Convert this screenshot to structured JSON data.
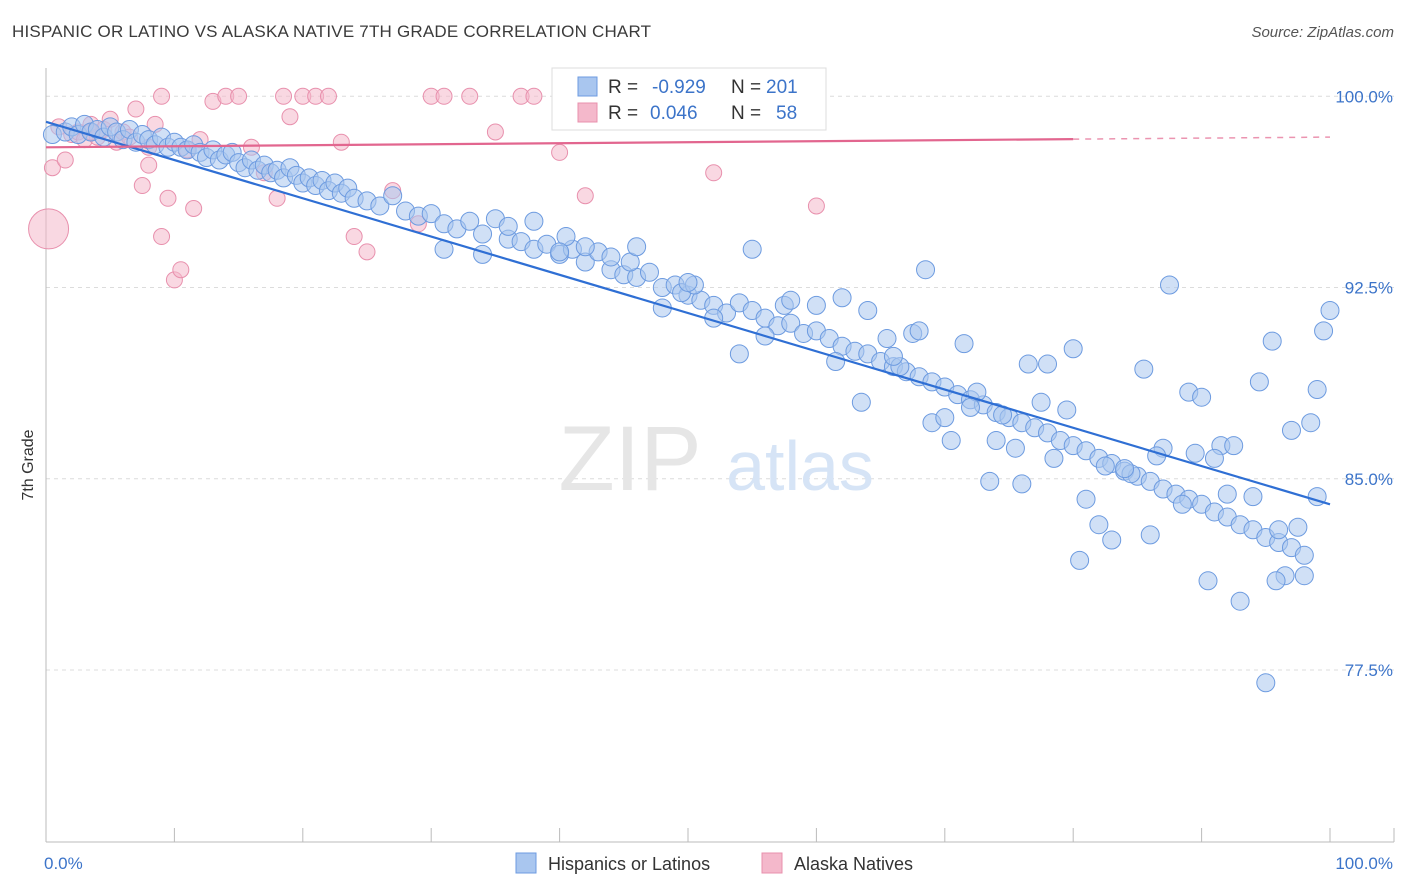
{
  "header": {
    "title": "HISPANIC OR LATINO VS ALASKA NATIVE 7TH GRADE CORRELATION CHART",
    "source": "Source: ZipAtlas.com"
  },
  "watermark": {
    "zip": "ZIP",
    "atlas": "atlas"
  },
  "colors": {
    "blue_fill": "#a9c6ef",
    "blue_stroke": "#6d9be0",
    "blue_line": "#2f6fd4",
    "pink_fill": "#f4b8cb",
    "pink_stroke": "#e890ad",
    "pink_line": "#e2668f",
    "axis_text": "#3c74c9",
    "grid": "#dcdcdc"
  },
  "legend_top": {
    "rows": [
      {
        "r_label": "R =",
        "r_value": "-0.929",
        "n_label": "N =",
        "n_value": "201"
      },
      {
        "r_label": "R =",
        "r_value": "0.046",
        "n_label": "N =",
        "n_value": "58"
      }
    ]
  },
  "chart_data": {
    "type": "scatter",
    "title": "HISPANIC OR LATINO VS ALASKA NATIVE 7TH GRADE CORRELATION CHART",
    "xlabel": "",
    "ylabel": "7th Grade",
    "xlim": [
      0,
      100
    ],
    "ylim": [
      70,
      100.6
    ],
    "x_tick_labels": [
      "0.0%",
      "100.0%"
    ],
    "y_ticks": [
      77.5,
      85.0,
      92.5,
      100.0
    ],
    "y_tick_labels": [
      "77.5%",
      "85.0%",
      "92.5%",
      "100.0%"
    ],
    "grid": "horizontal dashed",
    "legend_position": "bottom-center",
    "series": [
      {
        "name": "Hispanics or Latinos",
        "color": "#a9c6ef",
        "R": -0.929,
        "N": 201,
        "trend": {
          "x": [
            0,
            100
          ],
          "y": [
            99.0,
            84.0
          ]
        },
        "points": [
          [
            0.5,
            98.5
          ],
          [
            1.5,
            98.6
          ],
          [
            2.0,
            98.8
          ],
          [
            2.5,
            98.5
          ],
          [
            3.0,
            98.9
          ],
          [
            3.5,
            98.6
          ],
          [
            4.0,
            98.7
          ],
          [
            4.5,
            98.4
          ],
          [
            5.0,
            98.8
          ],
          [
            5.5,
            98.6
          ],
          [
            6.0,
            98.3
          ],
          [
            6.5,
            98.7
          ],
          [
            7.0,
            98.2
          ],
          [
            7.5,
            98.5
          ],
          [
            8.0,
            98.3
          ],
          [
            8.5,
            98.1
          ],
          [
            9.0,
            98.4
          ],
          [
            9.5,
            98.0
          ],
          [
            10.0,
            98.2
          ],
          [
            10.5,
            98.0
          ],
          [
            11.0,
            97.9
          ],
          [
            11.5,
            98.1
          ],
          [
            12.0,
            97.8
          ],
          [
            12.5,
            97.6
          ],
          [
            13.0,
            97.9
          ],
          [
            13.5,
            97.5
          ],
          [
            14.0,
            97.7
          ],
          [
            14.5,
            97.8
          ],
          [
            15.0,
            97.4
          ],
          [
            15.5,
            97.2
          ],
          [
            16.0,
            97.5
          ],
          [
            16.5,
            97.1
          ],
          [
            17.0,
            97.3
          ],
          [
            17.5,
            97.0
          ],
          [
            18.0,
            97.1
          ],
          [
            18.5,
            96.8
          ],
          [
            19.0,
            97.2
          ],
          [
            19.5,
            96.9
          ],
          [
            20.0,
            96.6
          ],
          [
            20.5,
            96.8
          ],
          [
            21.0,
            96.5
          ],
          [
            21.5,
            96.7
          ],
          [
            22.0,
            96.3
          ],
          [
            22.5,
            96.6
          ],
          [
            23.0,
            96.2
          ],
          [
            23.5,
            96.4
          ],
          [
            24.0,
            96.0
          ],
          [
            25.0,
            95.9
          ],
          [
            26.0,
            95.7
          ],
          [
            27.0,
            96.1
          ],
          [
            28.0,
            95.5
          ],
          [
            29.0,
            95.3
          ],
          [
            30.0,
            95.4
          ],
          [
            31.0,
            95.0
          ],
          [
            32.0,
            94.8
          ],
          [
            33.0,
            95.1
          ],
          [
            34.0,
            94.6
          ],
          [
            35.0,
            95.2
          ],
          [
            36.0,
            94.4
          ],
          [
            37.0,
            94.3
          ],
          [
            38.0,
            94.0
          ],
          [
            39.0,
            94.2
          ],
          [
            40.0,
            93.8
          ],
          [
            41.0,
            94.0
          ],
          [
            42.0,
            93.5
          ],
          [
            43.0,
            93.9
          ],
          [
            44.0,
            93.2
          ],
          [
            45.0,
            93.0
          ],
          [
            46.0,
            92.9
          ],
          [
            47.0,
            93.1
          ],
          [
            48.0,
            92.5
          ],
          [
            49.0,
            92.6
          ],
          [
            50.0,
            92.2
          ],
          [
            51.0,
            92.0
          ],
          [
            52.0,
            91.8
          ],
          [
            53.0,
            91.5
          ],
          [
            54.0,
            91.9
          ],
          [
            55.0,
            91.6
          ],
          [
            56.0,
            91.3
          ],
          [
            57.0,
            91.0
          ],
          [
            58.0,
            91.1
          ],
          [
            59.0,
            90.7
          ],
          [
            60.0,
            90.8
          ],
          [
            61.0,
            90.5
          ],
          [
            62.0,
            90.2
          ],
          [
            63.0,
            90.0
          ],
          [
            64.0,
            89.9
          ],
          [
            65.0,
            89.6
          ],
          [
            66.0,
            89.4
          ],
          [
            67.0,
            89.2
          ],
          [
            68.0,
            89.0
          ],
          [
            69.0,
            88.8
          ],
          [
            70.0,
            88.6
          ],
          [
            71.0,
            88.3
          ],
          [
            72.0,
            88.1
          ],
          [
            73.0,
            87.9
          ],
          [
            74.0,
            87.6
          ],
          [
            75.0,
            87.4
          ],
          [
            76.0,
            87.2
          ],
          [
            77.0,
            87.0
          ],
          [
            78.0,
            86.8
          ],
          [
            79.0,
            86.5
          ],
          [
            80.0,
            86.3
          ],
          [
            81.0,
            86.1
          ],
          [
            82.0,
            85.8
          ],
          [
            83.0,
            85.6
          ],
          [
            84.0,
            85.3
          ],
          [
            85.0,
            85.1
          ],
          [
            86.0,
            84.9
          ],
          [
            87.0,
            84.6
          ],
          [
            88.0,
            84.4
          ],
          [
            89.0,
            84.2
          ],
          [
            90.0,
            84.0
          ],
          [
            91.0,
            83.7
          ],
          [
            92.0,
            83.5
          ],
          [
            93.0,
            83.2
          ],
          [
            94.0,
            83.0
          ],
          [
            95.0,
            82.7
          ],
          [
            96.0,
            82.5
          ],
          [
            97.0,
            82.3
          ],
          [
            98.0,
            82.0
          ],
          [
            99.0,
            84.3
          ],
          [
            31.0,
            94.0
          ],
          [
            40.5,
            94.5
          ],
          [
            45.5,
            93.5
          ],
          [
            49.5,
            92.3
          ],
          [
            50.5,
            92.6
          ],
          [
            55.0,
            94.0
          ],
          [
            57.5,
            91.8
          ],
          [
            61.5,
            89.6
          ],
          [
            63.5,
            88.0
          ],
          [
            65.5,
            90.5
          ],
          [
            66.5,
            89.4
          ],
          [
            67.5,
            90.7
          ],
          [
            68.5,
            93.2
          ],
          [
            69.0,
            87.2
          ],
          [
            70.5,
            86.5
          ],
          [
            71.5,
            90.3
          ],
          [
            72.5,
            88.4
          ],
          [
            73.5,
            84.9
          ],
          [
            74.5,
            87.5
          ],
          [
            75.5,
            86.2
          ],
          [
            76.5,
            89.5
          ],
          [
            77.5,
            88.0
          ],
          [
            78.5,
            85.8
          ],
          [
            79.5,
            87.7
          ],
          [
            80.5,
            81.8
          ],
          [
            81.0,
            84.2
          ],
          [
            82.5,
            85.5
          ],
          [
            83.0,
            82.6
          ],
          [
            84.5,
            85.2
          ],
          [
            85.5,
            89.3
          ],
          [
            86.0,
            82.8
          ],
          [
            87.0,
            86.2
          ],
          [
            88.5,
            84.0
          ],
          [
            89.0,
            88.4
          ],
          [
            90.5,
            81.0
          ],
          [
            91.5,
            86.3
          ],
          [
            92.0,
            84.4
          ],
          [
            93.0,
            80.2
          ],
          [
            94.5,
            88.8
          ],
          [
            95.0,
            77.0
          ],
          [
            96.0,
            83.0
          ],
          [
            97.0,
            86.9
          ],
          [
            98.5,
            87.2
          ],
          [
            99.0,
            88.5
          ],
          [
            99.5,
            90.8
          ],
          [
            100.0,
            91.6
          ],
          [
            87.5,
            92.6
          ],
          [
            90.0,
            88.2
          ],
          [
            92.5,
            86.3
          ],
          [
            95.5,
            90.4
          ],
          [
            97.5,
            83.1
          ],
          [
            98.0,
            81.2
          ],
          [
            96.5,
            81.2
          ],
          [
            95.8,
            81.0
          ],
          [
            94.0,
            84.3
          ],
          [
            91.0,
            85.8
          ],
          [
            89.5,
            86.0
          ],
          [
            86.5,
            85.9
          ],
          [
            84.0,
            85.4
          ],
          [
            82.0,
            83.2
          ],
          [
            80.0,
            90.1
          ],
          [
            78.0,
            89.5
          ],
          [
            76.0,
            84.8
          ],
          [
            74.0,
            86.5
          ],
          [
            72.0,
            87.8
          ],
          [
            70.0,
            87.4
          ],
          [
            68.0,
            90.8
          ],
          [
            66.0,
            89.8
          ],
          [
            64.0,
            91.6
          ],
          [
            62.0,
            92.1
          ],
          [
            60.0,
            91.8
          ],
          [
            58.0,
            92.0
          ],
          [
            56.0,
            90.6
          ],
          [
            54.0,
            89.9
          ],
          [
            52.0,
            91.3
          ],
          [
            50.0,
            92.7
          ],
          [
            48.0,
            91.7
          ],
          [
            46.0,
            94.1
          ],
          [
            44.0,
            93.7
          ],
          [
            42.0,
            94.1
          ],
          [
            40.0,
            93.9
          ],
          [
            38.0,
            95.1
          ],
          [
            36.0,
            94.9
          ],
          [
            34.0,
            93.8
          ]
        ]
      },
      {
        "name": "Alaska Natives",
        "color": "#f4b8cb",
        "R": 0.046,
        "N": 58,
        "trend": {
          "x": [
            0,
            100
          ],
          "y": [
            98.0,
            98.4
          ]
        },
        "points": [
          [
            0.2,
            94.8
          ],
          [
            0.5,
            97.2
          ],
          [
            1.0,
            98.8
          ],
          [
            1.5,
            97.5
          ],
          [
            2.0,
            98.5
          ],
          [
            2.5,
            98.6
          ],
          [
            3.0,
            98.3
          ],
          [
            3.5,
            98.9
          ],
          [
            4.0,
            98.4
          ],
          [
            4.5,
            98.7
          ],
          [
            5.0,
            99.1
          ],
          [
            5.5,
            98.2
          ],
          [
            6.0,
            98.6
          ],
          [
            6.5,
            98.4
          ],
          [
            7.0,
            99.5
          ],
          [
            7.5,
            96.5
          ],
          [
            8.0,
            98.0
          ],
          [
            8.5,
            98.9
          ],
          [
            9.0,
            94.5
          ],
          [
            9.5,
            96.0
          ],
          [
            10.0,
            92.8
          ],
          [
            10.5,
            93.2
          ],
          [
            11.0,
            97.9
          ],
          [
            11.5,
            95.6
          ],
          [
            12.0,
            98.3
          ],
          [
            13.0,
            99.8
          ],
          [
            14.0,
            100.0
          ],
          [
            15.0,
            100.0
          ],
          [
            16.0,
            98.0
          ],
          [
            17.0,
            97.0
          ],
          [
            18.0,
            96.0
          ],
          [
            18.5,
            100.0
          ],
          [
            19.0,
            99.2
          ],
          [
            20.0,
            100.0
          ],
          [
            21.0,
            100.0
          ],
          [
            22.0,
            100.0
          ],
          [
            23.0,
            98.2
          ],
          [
            24.0,
            94.5
          ],
          [
            25.0,
            93.9
          ],
          [
            27.0,
            96.3
          ],
          [
            29.0,
            95.0
          ],
          [
            30.0,
            100.0
          ],
          [
            31.0,
            100.0
          ],
          [
            33.0,
            100.0
          ],
          [
            35.0,
            98.6
          ],
          [
            37.0,
            100.0
          ],
          [
            38.0,
            100.0
          ],
          [
            40.0,
            97.8
          ],
          [
            42.0,
            96.1
          ],
          [
            45.0,
            100.0
          ],
          [
            47.0,
            99.0
          ],
          [
            50.0,
            100.0
          ],
          [
            52.0,
            97.0
          ],
          [
            55.0,
            100.0
          ],
          [
            60.0,
            95.7
          ],
          [
            8.0,
            97.3
          ],
          [
            9.0,
            100.0
          ],
          [
            3.5,
            98.6
          ]
        ]
      }
    ]
  },
  "bottom_legend": {
    "items": [
      "Hispanics or Latinos",
      "Alaska Natives"
    ]
  }
}
